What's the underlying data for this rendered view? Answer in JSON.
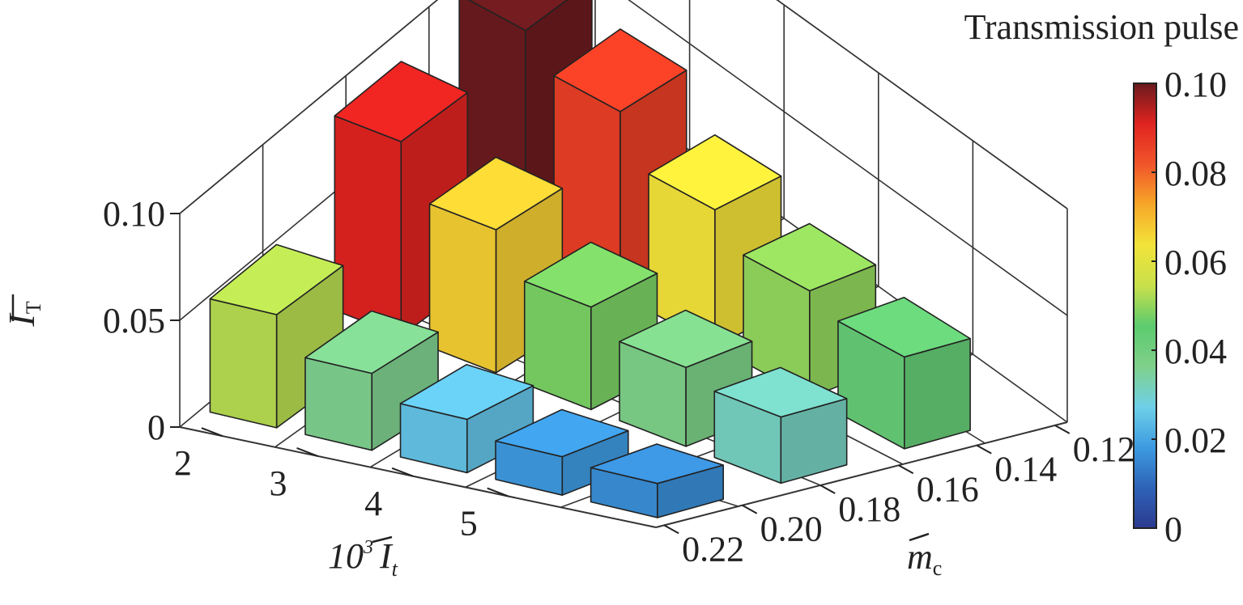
{
  "chart_data": {
    "type": "bar3d",
    "title": "",
    "zlabel": {
      "symbol": "I",
      "subscript": "T"
    },
    "ylabel": {
      "prefix": "10",
      "exponent": "3",
      "symbol": "I",
      "subscript": "t"
    },
    "xlabel": {
      "symbol": "m",
      "subscript": "c"
    },
    "zlim": [
      0,
      0.1
    ],
    "z_ticks": [
      "0",
      "0.05",
      "0.10"
    ],
    "y_ticks": [
      "2",
      "3",
      "4",
      "5"
    ],
    "x_ticks": [
      "0.22",
      "0.20",
      "0.18",
      "0.16",
      "0.14",
      "0.12"
    ],
    "grid": true,
    "bars": [
      {
        "It": "2",
        "mc": "0.22",
        "value": 0.053
      },
      {
        "It": "3",
        "mc": "0.22",
        "value": 0.036
      },
      {
        "It": "4",
        "mc": "0.22",
        "value": 0.025
      },
      {
        "It": "5",
        "mc": "0.22",
        "value": 0.018
      },
      {
        "It": "6",
        "mc": "0.22",
        "value": 0.016
      },
      {
        "It": "3",
        "mc": "0.18",
        "value": 0.091
      },
      {
        "It": "4",
        "mc": "0.18",
        "value": 0.067
      },
      {
        "It": "5",
        "mc": "0.18",
        "value": 0.048
      },
      {
        "It": "6",
        "mc": "0.18",
        "value": 0.037
      },
      {
        "It": "7",
        "mc": "0.18",
        "value": 0.031
      },
      {
        "It": "4",
        "mc": "0.14",
        "value": 0.1
      },
      {
        "It": "5",
        "mc": "0.14",
        "value": 0.086
      },
      {
        "It": "6",
        "mc": "0.14",
        "value": 0.064
      },
      {
        "It": "7",
        "mc": "0.14",
        "value": 0.05
      },
      {
        "It": "8",
        "mc": "0.14",
        "value": 0.043
      }
    ],
    "colorbar": {
      "title": "Transmission pulse",
      "ticks": [
        "0.10",
        "0.08",
        "0.06",
        "0.04",
        "0.02",
        "0"
      ],
      "range": [
        0,
        0.1
      ],
      "colors": [
        "#2b3a8f",
        "#2e63b8",
        "#3d9be0",
        "#6fd0e8",
        "#7fd08a",
        "#5ccb6e",
        "#c8e04a",
        "#f2e33a",
        "#f7a728",
        "#f0552a",
        "#e02320",
        "#6b1a1d"
      ]
    }
  }
}
